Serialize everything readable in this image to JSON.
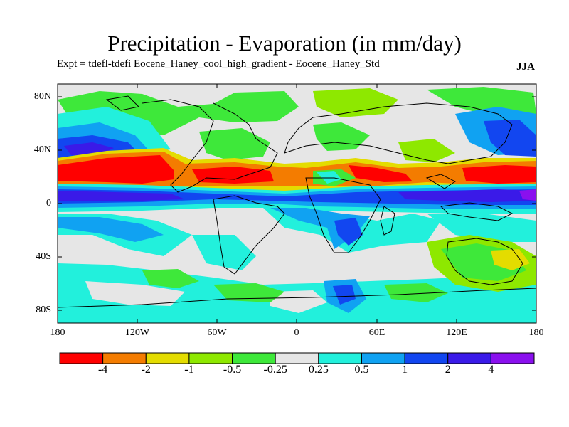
{
  "title": "Precipitation - Evaporation (in mm/day)",
  "subtitle": "Expt = tdefl-tdefi  Eocene_Haney_cool_high_gradient - Eocene_Haney_Std",
  "season": "JJA",
  "lat_labels": [
    "80N",
    "40N",
    "0",
    "40S",
    "80S"
  ],
  "lon_labels": [
    "180",
    "120W",
    "60W",
    "0",
    "60E",
    "120E",
    "180"
  ],
  "colorbar": {
    "colors": [
      "#ff0000",
      "#f47c00",
      "#e4dc00",
      "#8ee800",
      "#3ee83a",
      "#e6e6e6",
      "#22f0dc",
      "#10a2f2",
      "#1246f0",
      "#3a1ae8",
      "#8a10ee"
    ],
    "labels": [
      "-4",
      "-2",
      "-1",
      "-0.5",
      "-0.25",
      "0.25",
      "0.5",
      "1",
      "2",
      "4"
    ]
  },
  "map": {
    "background": "#e6e6e6",
    "bands": [
      {
        "name": "northern-dry-belt",
        "color": "#ff0000"
      },
      {
        "name": "equatorial-wet-belt",
        "color": "#1246f0"
      }
    ]
  }
}
